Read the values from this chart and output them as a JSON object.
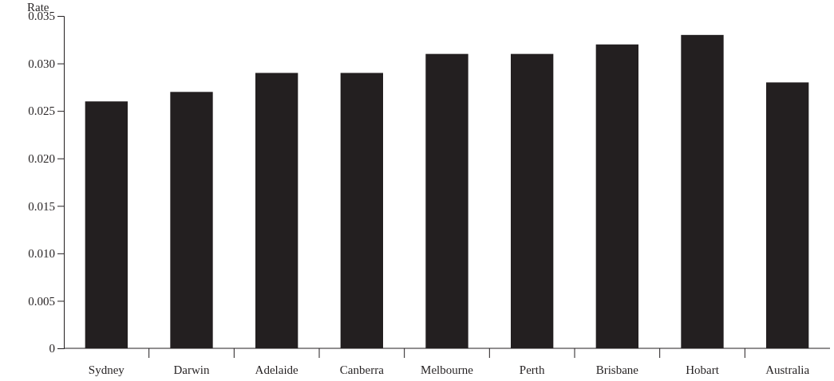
{
  "chart_data": {
    "type": "bar",
    "ylabel": "Rate",
    "categories": [
      "Sydney",
      "Darwin",
      "Adelaide",
      "Canberra",
      "Melbourne",
      "Perth",
      "Brisbane",
      "Hobart",
      "Australia"
    ],
    "values": [
      0.026,
      0.027,
      0.029,
      0.029,
      0.031,
      0.031,
      0.032,
      0.033,
      0.028
    ],
    "color": "#231f20",
    "ylim": [
      0,
      0.035
    ],
    "yticks": [
      {
        "value": 0,
        "label": "0"
      },
      {
        "value": 0.005,
        "label": "0.005"
      },
      {
        "value": 0.01,
        "label": "0.010"
      },
      {
        "value": 0.015,
        "label": "0.015"
      },
      {
        "value": 0.02,
        "label": "0.020"
      },
      {
        "value": 0.025,
        "label": "0.025"
      },
      {
        "value": 0.03,
        "label": "0.030"
      },
      {
        "value": 0.035,
        "label": "0.035"
      }
    ],
    "grid": false
  }
}
